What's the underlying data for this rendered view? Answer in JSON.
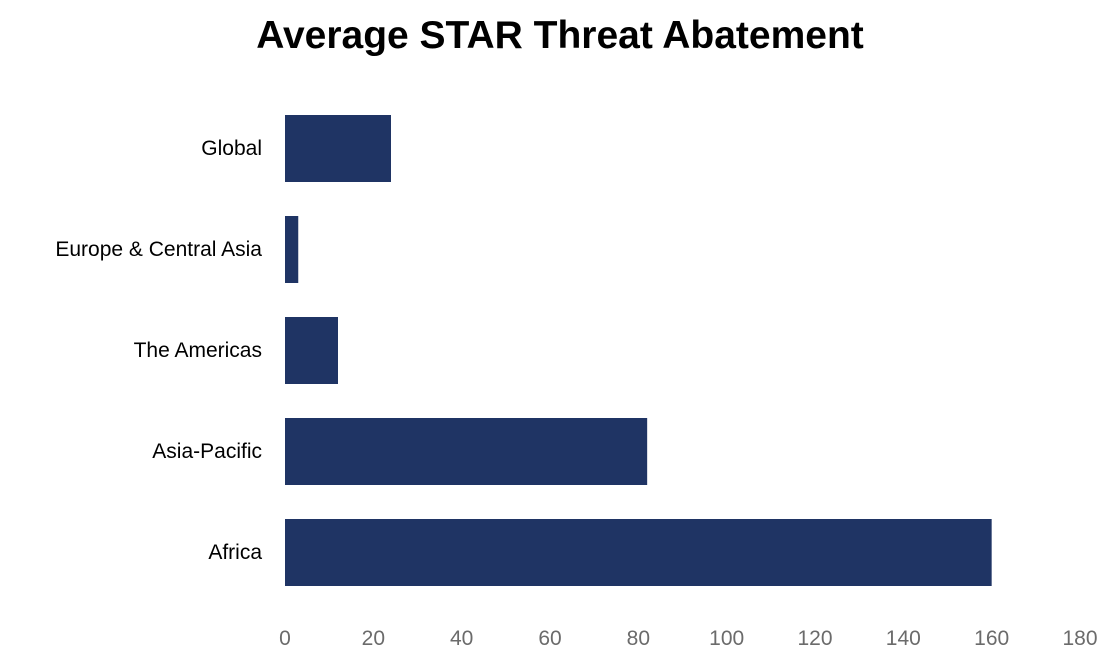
{
  "chart_data": {
    "type": "bar",
    "orientation": "horizontal",
    "title": "Average STAR Threat Abatement",
    "xlabel": "",
    "ylabel": "",
    "categories": [
      "Global",
      "Europe & Central Asia",
      "The Americas",
      "Asia-Pacific",
      "Africa"
    ],
    "values": [
      24,
      3,
      12,
      82,
      160
    ],
    "xlim": [
      0,
      180
    ],
    "x_ticks": [
      0,
      20,
      40,
      60,
      80,
      100,
      120,
      140,
      160,
      180
    ],
    "grid": false,
    "legend": "none",
    "bar_color": "#1f3464"
  }
}
